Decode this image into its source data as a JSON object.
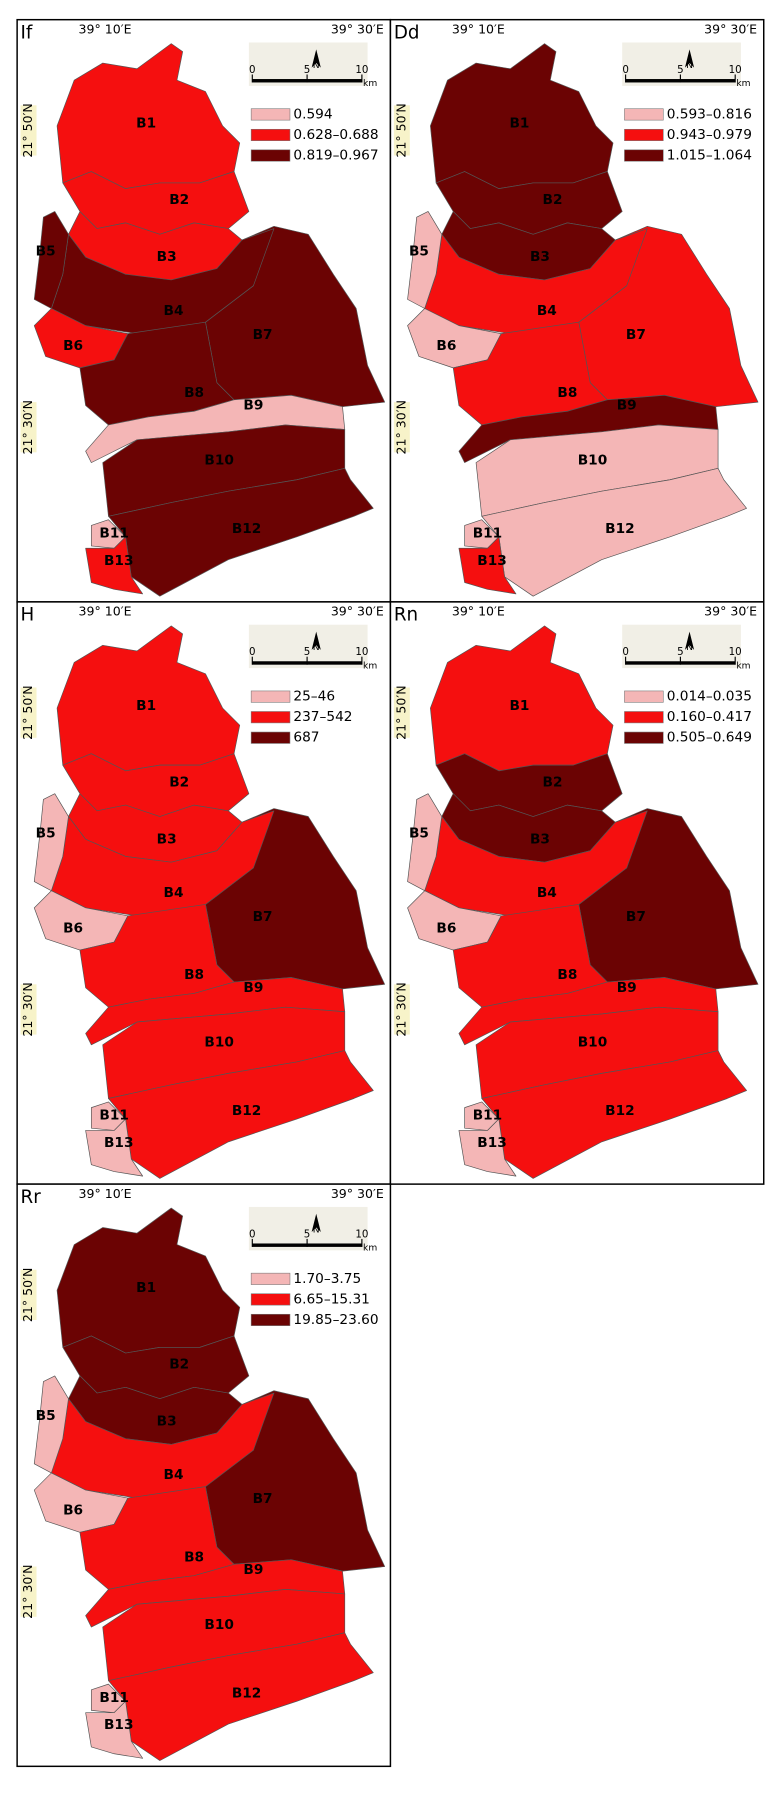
{
  "frame": {
    "lon_labels": [
      "39° 10′E",
      "39° 30′E"
    ],
    "lat_labels": [
      "21° 50′N",
      "21° 30′N"
    ],
    "scale_ticks": [
      0,
      5,
      10
    ],
    "scale_unit": "km",
    "north": "N"
  },
  "basin_labels": [
    "B1",
    "B2",
    "B3",
    "B4",
    "B5",
    "B6",
    "B7",
    "B8",
    "B9",
    "B10",
    "B11",
    "B12",
    "B13"
  ],
  "panels": [
    {
      "title": "If",
      "legend": [
        {
          "label": "0.594",
          "color": "#f4b6b6"
        },
        {
          "label": "0.628–0.688",
          "color": "#f50f0f"
        },
        {
          "label": "0.819–0.967",
          "color": "#6b0303"
        }
      ],
      "basin_colors": [
        "#f50f0f",
        "#f50f0f",
        "#f50f0f",
        "#6b0303",
        "#6b0303",
        "#f50f0f",
        "#6b0303",
        "#6b0303",
        "#f4b6b6",
        "#6b0303",
        "#f4b6b6",
        "#6b0303",
        "#f50f0f"
      ]
    },
    {
      "title": "Dd",
      "legend": [
        {
          "label": "0.593–0.816",
          "color": "#f4b6b6"
        },
        {
          "label": "0.943–0.979",
          "color": "#f50f0f"
        },
        {
          "label": "1.015–1.064",
          "color": "#6b0303"
        }
      ],
      "basin_colors": [
        "#6b0303",
        "#6b0303",
        "#6b0303",
        "#f50f0f",
        "#f4b6b6",
        "#f4b6b6",
        "#f50f0f",
        "#f50f0f",
        "#6b0303",
        "#f4b6b6",
        "#f4b6b6",
        "#f4b6b6",
        "#f50f0f"
      ]
    },
    {
      "title": "H",
      "legend": [
        {
          "label": "25–46",
          "color": "#f4b6b6"
        },
        {
          "label": "237–542",
          "color": "#f50f0f"
        },
        {
          "label": "687",
          "color": "#6b0303"
        }
      ],
      "basin_colors": [
        "#f50f0f",
        "#f50f0f",
        "#f50f0f",
        "#f50f0f",
        "#f4b6b6",
        "#f4b6b6",
        "#6b0303",
        "#f50f0f",
        "#f50f0f",
        "#f50f0f",
        "#f4b6b6",
        "#f50f0f",
        "#f4b6b6"
      ]
    },
    {
      "title": "Rn",
      "legend": [
        {
          "label": "0.014–0.035",
          "color": "#f4b6b6"
        },
        {
          "label": "0.160–0.417",
          "color": "#f50f0f"
        },
        {
          "label": "0.505–0.649",
          "color": "#6b0303"
        }
      ],
      "basin_colors": [
        "#f50f0f",
        "#6b0303",
        "#6b0303",
        "#f50f0f",
        "#f4b6b6",
        "#f4b6b6",
        "#6b0303",
        "#f50f0f",
        "#f50f0f",
        "#f50f0f",
        "#f4b6b6",
        "#f50f0f",
        "#f4b6b6"
      ]
    },
    {
      "title": "Rr",
      "legend": [
        {
          "label": "1.70–3.75",
          "color": "#f4b6b6"
        },
        {
          "label": "6.65–15.31",
          "color": "#f50f0f"
        },
        {
          "label": "19.85–23.60",
          "color": "#6b0303"
        }
      ],
      "basin_colors": [
        "#6b0303",
        "#6b0303",
        "#6b0303",
        "#f50f0f",
        "#f4b6b6",
        "#f4b6b6",
        "#6b0303",
        "#f50f0f",
        "#f50f0f",
        "#f50f0f",
        "#f4b6b6",
        "#f50f0f",
        "#f4b6b6"
      ]
    }
  ]
}
